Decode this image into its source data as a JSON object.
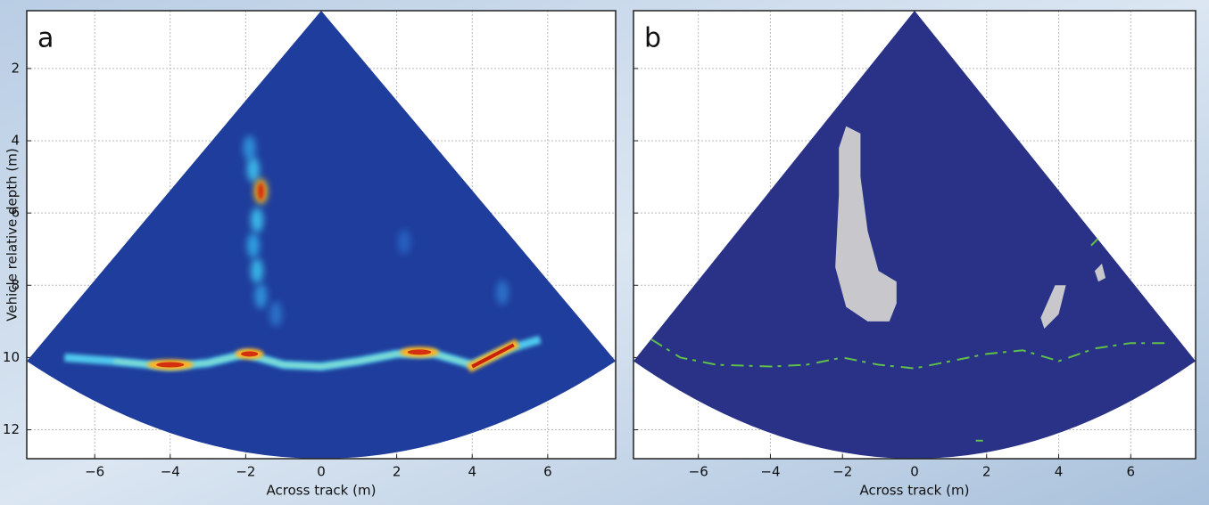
{
  "chart_data": [
    {
      "type": "sonar-image",
      "label": "a",
      "x_label": "Across track (m)",
      "y_label": "Vehicle relative depth (m)",
      "xlim": [
        -7.8,
        7.8
      ],
      "ylim": [
        0.4,
        12.8
      ],
      "y_inverted": true,
      "xticks": [
        {
          "value": -6,
          "label": "−6"
        },
        {
          "value": -4,
          "label": "−4"
        },
        {
          "value": -2,
          "label": "−2"
        },
        0,
        2,
        4,
        6
      ],
      "yticks": [
        2,
        4,
        6,
        8,
        10,
        12
      ],
      "grid": true
    },
    {
      "type": "sonar-mask",
      "label": "b",
      "x_label": "Across track (m)",
      "xlim": [
        -7.8,
        7.8
      ],
      "ylim": [
        0.4,
        12.8
      ],
      "y_inverted": true,
      "xticks": [
        {
          "value": -6,
          "label": "−6"
        },
        {
          "value": -4,
          "label": "−4"
        },
        {
          "value": -2,
          "label": "−2"
        },
        0,
        2,
        4,
        6
      ],
      "yticks": [
        2,
        4,
        6,
        8,
        10,
        12
      ],
      "grid": true
    }
  ]
}
